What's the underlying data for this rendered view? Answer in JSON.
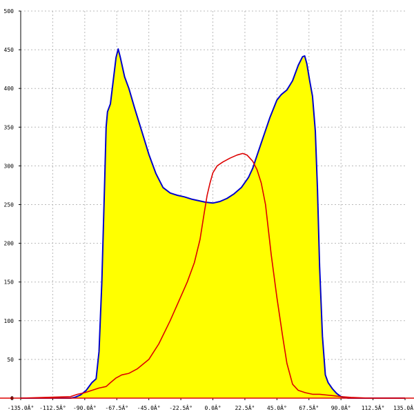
{
  "chart_data": {
    "type": "area",
    "title": "",
    "xlabel": "",
    "ylabel": "",
    "xlim": [
      -135,
      135
    ],
    "ylim": [
      0,
      500
    ],
    "grid": true,
    "x_ticks": [
      -135,
      -112.5,
      -90,
      -67.5,
      -45,
      -22.5,
      0,
      22.5,
      45,
      67.5,
      90,
      112.5,
      135
    ],
    "x_tick_labels": [
      "-135.0Â°",
      "-112.5Â°",
      "-90.0Â°",
      "-67.5Â°",
      "-45.0Â°",
      "-22.5Â°",
      "0.0Â°",
      "22.5Â°",
      "45.0Â°",
      "67.5Â°",
      "90.0Â°",
      "112.5Â°",
      "135.0Â°"
    ],
    "y_ticks": [
      0,
      50,
      100,
      150,
      200,
      250,
      300,
      350,
      400,
      450,
      500
    ],
    "y_tick_labels": [
      "0",
      "50",
      "100",
      "150",
      "200",
      "250",
      "300",
      "350",
      "400",
      "450",
      "500"
    ],
    "series": [
      {
        "style": "filled-area",
        "line_color": "#0000cc",
        "fill_color": "#ffff00",
        "points": [
          [
            -135,
            0
          ],
          [
            -100,
            0
          ],
          [
            -97,
            1
          ],
          [
            -93,
            4
          ],
          [
            -89,
            10
          ],
          [
            -85,
            20
          ],
          [
            -82,
            25
          ],
          [
            -80,
            60
          ],
          [
            -78,
            150
          ],
          [
            -76,
            280
          ],
          [
            -75,
            350
          ],
          [
            -74,
            370
          ],
          [
            -72,
            380
          ],
          [
            -70,
            410
          ],
          [
            -68,
            440
          ],
          [
            -66.5,
            451
          ],
          [
            -65,
            440
          ],
          [
            -62,
            415
          ],
          [
            -59,
            400
          ],
          [
            -55,
            375
          ],
          [
            -50,
            345
          ],
          [
            -45,
            315
          ],
          [
            -40,
            290
          ],
          [
            -35,
            272
          ],
          [
            -30,
            265
          ],
          [
            -25,
            262
          ],
          [
            -20,
            260
          ],
          [
            -15,
            257
          ],
          [
            -10,
            255
          ],
          [
            -5,
            253
          ],
          [
            0,
            252
          ],
          [
            5,
            254
          ],
          [
            10,
            258
          ],
          [
            15,
            264
          ],
          [
            20,
            272
          ],
          [
            25,
            285
          ],
          [
            28,
            297
          ],
          [
            30,
            308
          ],
          [
            35,
            335
          ],
          [
            40,
            362
          ],
          [
            45,
            385
          ],
          [
            48,
            392
          ],
          [
            52,
            398
          ],
          [
            56,
            410
          ],
          [
            60,
            430
          ],
          [
            63,
            441
          ],
          [
            64.5,
            442
          ],
          [
            66,
            432
          ],
          [
            68,
            410
          ],
          [
            70,
            390
          ],
          [
            72,
            345
          ],
          [
            73.5,
            270
          ],
          [
            75,
            170
          ],
          [
            77,
            80
          ],
          [
            79,
            30
          ],
          [
            81,
            20
          ],
          [
            84,
            12
          ],
          [
            87,
            6
          ],
          [
            90,
            2
          ],
          [
            95,
            0
          ],
          [
            135,
            0
          ]
        ]
      },
      {
        "style": "line",
        "line_color": "#dd0000",
        "points": [
          [
            -135,
            0
          ],
          [
            -100,
            2
          ],
          [
            -95,
            5
          ],
          [
            -90,
            7
          ],
          [
            -85,
            10
          ],
          [
            -80,
            13
          ],
          [
            -75,
            15
          ],
          [
            -72,
            20
          ],
          [
            -68,
            26
          ],
          [
            -64,
            30
          ],
          [
            -59,
            32
          ],
          [
            -53,
            38
          ],
          [
            -45,
            50
          ],
          [
            -38,
            70
          ],
          [
            -30,
            100
          ],
          [
            -24,
            125
          ],
          [
            -18,
            150
          ],
          [
            -13,
            175
          ],
          [
            -9,
            205
          ],
          [
            -6,
            240
          ],
          [
            -4,
            262
          ],
          [
            -2,
            278
          ],
          [
            0,
            291
          ],
          [
            3,
            300
          ],
          [
            7,
            305
          ],
          [
            12,
            310
          ],
          [
            17,
            314
          ],
          [
            21,
            316
          ],
          [
            24,
            314
          ],
          [
            28,
            306
          ],
          [
            31,
            295
          ],
          [
            34,
            278
          ],
          [
            37,
            250
          ],
          [
            41,
            185
          ],
          [
            45,
            130
          ],
          [
            49,
            80
          ],
          [
            52,
            45
          ],
          [
            56,
            18
          ],
          [
            60,
            10
          ],
          [
            65,
            7
          ],
          [
            70,
            5
          ],
          [
            75,
            5
          ],
          [
            80,
            4
          ],
          [
            85,
            3
          ],
          [
            90,
            2
          ],
          [
            97,
            1
          ],
          [
            110,
            0
          ],
          [
            135,
            0
          ]
        ]
      }
    ]
  }
}
